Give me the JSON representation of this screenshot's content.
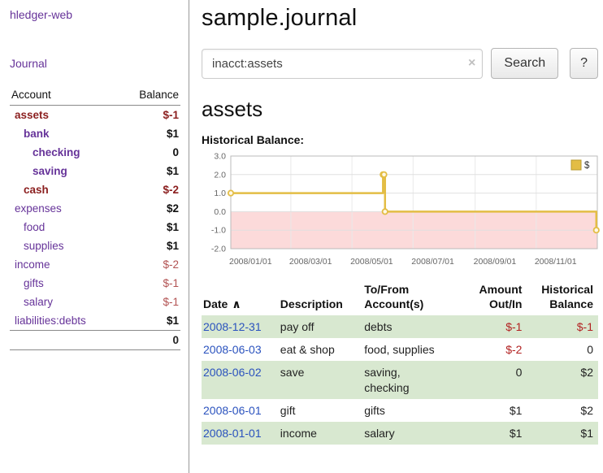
{
  "colors": {
    "link_purple": "#663399",
    "negative_dark": "#8b1f1f",
    "negative": "#b25252",
    "table_negative": "#b22222",
    "date_link": "#2a52be",
    "row_green": "#d8e8d0",
    "chart_gold": "#e3bd45",
    "chart_negative_fill": "#fcdada"
  },
  "app": {
    "title": "hledger-web"
  },
  "sidebar": {
    "journal_link": "Journal",
    "headers": {
      "account": "Account",
      "balance": "Balance"
    },
    "rows": [
      {
        "name": "assets",
        "balance": "$-1",
        "level": 1,
        "strong": true
      },
      {
        "name": "bank",
        "balance": "$1",
        "level": 2,
        "strong": true
      },
      {
        "name": "checking",
        "balance": "0",
        "level": 3,
        "strong": true
      },
      {
        "name": "saving",
        "balance": "$1",
        "level": 3,
        "strong": true
      },
      {
        "name": "cash",
        "balance": "$-2",
        "level": 2,
        "strong": true
      },
      {
        "name": "expenses",
        "balance": "$2",
        "level": 1,
        "strong": false
      },
      {
        "name": "food",
        "balance": "$1",
        "level": 2,
        "strong": false
      },
      {
        "name": "supplies",
        "balance": "$1",
        "level": 2,
        "strong": false
      },
      {
        "name": "income",
        "balance": "$-2",
        "level": 1,
        "strong": false
      },
      {
        "name": "gifts",
        "balance": "$-1",
        "level": 2,
        "strong": false
      },
      {
        "name": "salary",
        "balance": "$-1",
        "level": 2,
        "strong": false
      },
      {
        "name": "liabilities:debts",
        "balance": "$1",
        "level": 1,
        "strong": false
      }
    ],
    "total": "0"
  },
  "main": {
    "title": "sample.journal",
    "search": {
      "value": "inacct:assets",
      "clear_icon": "×",
      "button": "Search",
      "help_button": "?"
    },
    "account_title": "assets",
    "chart_label": "Historical Balance:"
  },
  "chart_data": {
    "type": "line",
    "title": "Historical Balance",
    "step": true,
    "series": [
      {
        "name": "$",
        "points": [
          [
            "2008-01-01",
            1
          ],
          [
            "2008-06-01",
            2
          ],
          [
            "2008-06-02",
            2
          ],
          [
            "2008-06-03",
            0
          ],
          [
            "2008-12-31",
            -1
          ]
        ]
      }
    ],
    "ylim": [
      -2,
      3
    ],
    "yticks": [
      3.0,
      2.0,
      1.0,
      0.0,
      -1.0,
      -2.0
    ],
    "xticks": [
      "2008/01/01",
      "2008/03/01",
      "2008/05/01",
      "2008/07/01",
      "2008/09/01",
      "2008/11/01"
    ],
    "xrange": [
      "2008-01-01",
      "2009-01-01"
    ],
    "grid": true,
    "legend": {
      "label": "$",
      "position": "top-right"
    }
  },
  "register": {
    "headers": {
      "date": "Date",
      "sort_indicator": "∧",
      "description": "Description",
      "account_line1": "To/From",
      "account_line2": "Account(s)",
      "amount_line1": "Amount",
      "amount_line2": "Out/In",
      "balance_line1": "Historical",
      "balance_line2": "Balance"
    },
    "rows": [
      {
        "date": "2008-12-31",
        "description": "pay off",
        "accounts": "debts",
        "amount": "$-1",
        "balance": "$-1"
      },
      {
        "date": "2008-06-03",
        "description": "eat & shop",
        "accounts": "food, supplies",
        "amount": "$-2",
        "balance": "0"
      },
      {
        "date": "2008-06-02",
        "description": "save",
        "accounts": "saving, checking",
        "amount": "0",
        "balance": "$2"
      },
      {
        "date": "2008-06-01",
        "description": "gift",
        "accounts": "gifts",
        "amount": "$1",
        "balance": "$2"
      },
      {
        "date": "2008-01-01",
        "description": "income",
        "accounts": "salary",
        "amount": "$1",
        "balance": "$1"
      }
    ]
  }
}
